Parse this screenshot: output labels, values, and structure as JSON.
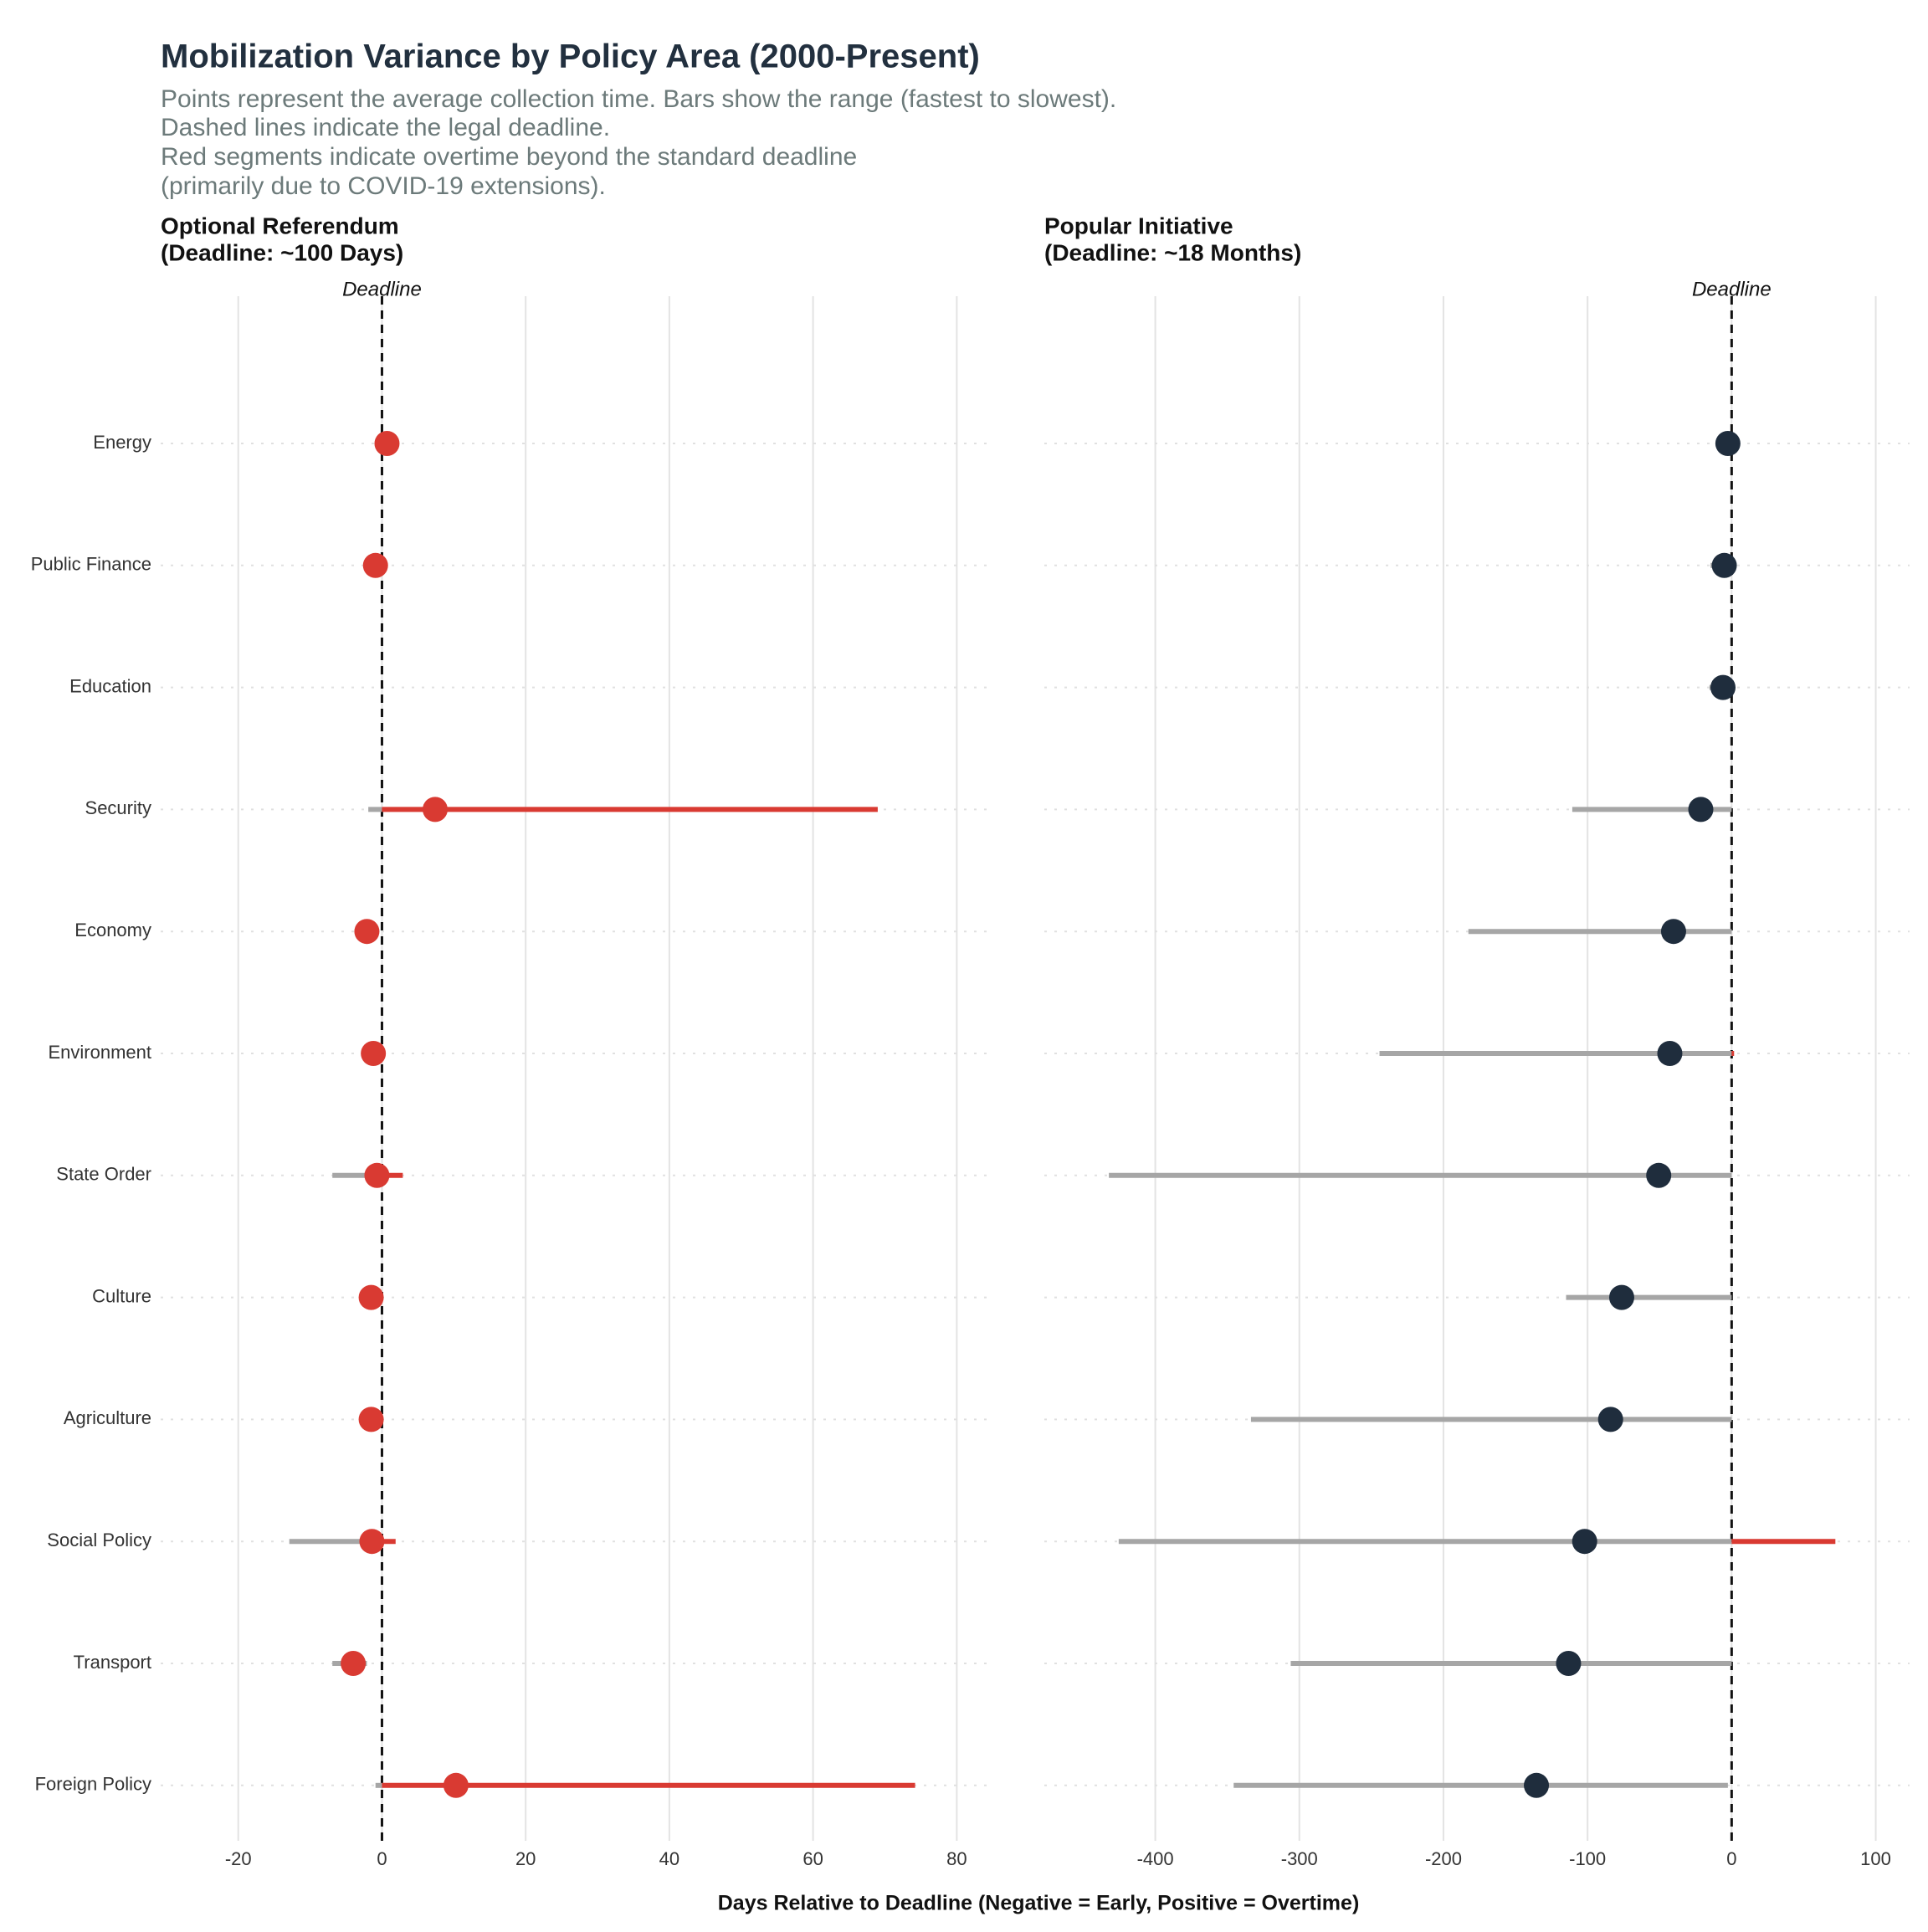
{
  "title": "Mobilization Variance by Policy Area (2000-Present)",
  "subtitle": [
    "Points represent the average collection time. Bars show the range (fastest to slowest).",
    "Dashed lines indicate the legal deadline.",
    "Red segments indicate overtime beyond the standard deadline",
    "(primarily due to COVID-19 extensions)."
  ],
  "xlabel": "Days Relative to Deadline (Negative = Early, Positive = Overtime)",
  "chart_data": [
    {
      "type": "range",
      "title": [
        "Optional Referendum",
        "(Deadline: ~100 Days)"
      ],
      "categories": [
        "Energy",
        "Public Finance",
        "Education",
        "Security",
        "Economy",
        "Environment",
        "State Order",
        "Culture",
        "Agriculture",
        "Social Policy",
        "Transport",
        "Foreign Policy"
      ],
      "min": [
        0.7,
        -1.5,
        null,
        -1.9,
        -3.6,
        -1.8,
        -6.9,
        -2,
        -2,
        -12.9,
        -6.9,
        -0.9
      ],
      "mean": [
        0.7,
        -0.9,
        null,
        7.4,
        -2.1,
        -1.2,
        -0.7,
        -1.5,
        -1.5,
        -1.4,
        -4,
        10.3
      ],
      "max": [
        0.7,
        -0.5,
        null,
        69,
        -1.5,
        -0.8,
        2.9,
        -1,
        -1,
        1.9,
        -2.1,
        74.2
      ],
      "deadline": 0,
      "deadline_label": "Deadline",
      "xlim": [
        -30.8,
        84.5
      ],
      "xticks": [
        -20,
        0,
        20,
        40,
        60,
        80
      ],
      "point_color": "#d93a32",
      "range_color": "#a6a6a6",
      "overtime_color": "#d93a32"
    },
    {
      "type": "range",
      "title": [
        "Popular Initiative",
        "(Deadline: ~18 Months)"
      ],
      "min": [
        -2.6,
        -14.6,
        -15.4,
        -110.6,
        -182.7,
        -244.4,
        -432.2,
        -114.9,
        -333.6,
        -425.4,
        -306,
        -345.6
      ],
      "mean": [
        -2.6,
        -5.1,
        -6,
        -21.4,
        -40.3,
        -42.9,
        -50.6,
        -76.3,
        -84,
        -102,
        -113.2,
        -135.5
      ],
      "max": [
        -2.6,
        -5,
        -6,
        0,
        0,
        1.7,
        0,
        0,
        0,
        72,
        0,
        -2.6
      ],
      "deadline": 0,
      "deadline_label": "Deadline",
      "xlim": [
        -477,
        123.5
      ],
      "xticks": [
        -400,
        -300,
        -200,
        -100,
        0,
        100
      ],
      "point_color": "#1f2d3d",
      "range_color": "#a6a6a6",
      "overtime_color": "#d93a32"
    }
  ]
}
